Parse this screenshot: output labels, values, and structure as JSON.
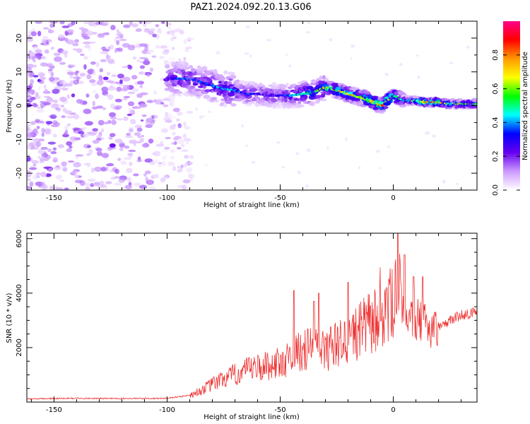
{
  "title": "PAZ1.2024.092.20.13.G06",
  "chart_data": [
    {
      "type": "heatmap",
      "xlabel": "Height of straight line (km)",
      "ylabel": "Frequency (Hz)",
      "xlim": [
        -162,
        37
      ],
      "ylim": [
        -25,
        25
      ],
      "xticks": [
        -150,
        -100,
        -50,
        0
      ],
      "yticks": [
        -20,
        -10,
        0,
        10,
        20
      ],
      "colorbar": {
        "label": "Normalized spectral amplitude",
        "range": [
          0,
          1
        ],
        "ticks": [
          "0.0",
          "0.2",
          "0.4",
          "0.6",
          "0.8"
        ],
        "colormap": [
          "#ffffff",
          "#cc99ff",
          "#6600ee",
          "#0000ff",
          "#00ffff",
          "#00ff00",
          "#ffff00",
          "#ff9900",
          "#ff0000",
          "#ff0088"
        ]
      },
      "signal_track": {
        "x": [
          -100,
          -90,
          -85,
          -80,
          -75,
          -70,
          -65,
          -60,
          -55,
          -50,
          -45,
          -40,
          -35,
          -30,
          -25,
          -20,
          -15,
          -10,
          -5,
          0,
          5,
          10,
          15,
          20,
          25,
          30,
          37
        ],
        "frequency": [
          8,
          8,
          7,
          6,
          5,
          4.5,
          3.5,
          3.5,
          3,
          3,
          3,
          3.5,
          4,
          5.5,
          4.5,
          3.5,
          2.5,
          1.5,
          0,
          3,
          1.5,
          1.5,
          1,
          1,
          0.5,
          0.5,
          0.5
        ],
        "peak_amplitude": [
          0.3,
          0.4,
          0.35,
          0.4,
          0.45,
          0.4,
          0.35,
          0.3,
          0.35,
          0.3,
          0.4,
          0.5,
          0.55,
          0.75,
          0.7,
          0.7,
          0.75,
          0.8,
          0.9,
          0.6,
          0.5,
          0.7,
          0.9,
          0.85,
          0.7,
          0.6,
          0.55
        ]
      },
      "noise_region_x": [
        -162,
        -95
      ]
    },
    {
      "type": "line",
      "xlabel": "Height of straight line (km)",
      "ylabel": "SNR (10 * v/v)",
      "xlim": [
        -162,
        37
      ],
      "ylim": [
        0,
        6200
      ],
      "xticks": [
        -150,
        -100,
        -50,
        0
      ],
      "yticks": [
        2000,
        4000,
        6000
      ],
      "line_color": "#ee3333",
      "envelope": {
        "x": [
          -162,
          -140,
          -120,
          -100,
          -90,
          -85,
          -80,
          -75,
          -70,
          -65,
          -60,
          -55,
          -50,
          -45,
          -40,
          -35,
          -30,
          -25,
          -20,
          -15,
          -10,
          -8,
          -5,
          0,
          2,
          3,
          5,
          10,
          15,
          20,
          25,
          30,
          37
        ],
        "y": [
          120,
          140,
          130,
          140,
          250,
          420,
          650,
          850,
          1000,
          1150,
          1250,
          1350,
          1450,
          1650,
          1900,
          2000,
          1900,
          2100,
          2300,
          2600,
          2900,
          3000,
          3200,
          3600,
          4600,
          4200,
          3300,
          3000,
          2800,
          2700,
          3000,
          3200,
          3300
        ]
      },
      "spikes": [
        {
          "x": -44,
          "y": 4100
        },
        {
          "x": -35,
          "y": 3700
        },
        {
          "x": -33,
          "y": 4000
        },
        {
          "x": -20,
          "y": 4400
        },
        {
          "x": -3,
          "y": 4200
        },
        {
          "x": 2,
          "y": 6200
        },
        {
          "x": 5,
          "y": 5400
        },
        {
          "x": 9,
          "y": 4600
        },
        {
          "x": 13,
          "y": 4600
        }
      ]
    }
  ]
}
